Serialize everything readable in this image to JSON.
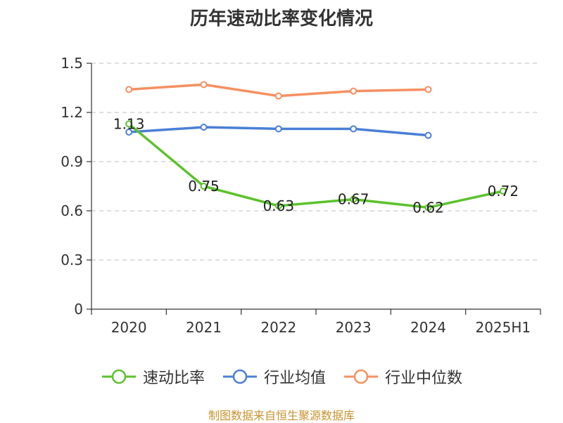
{
  "title": "历年速动比率变化情况",
  "source": "制图数据来自恒生聚源数据库",
  "chart_data": {
    "type": "line",
    "categories": [
      "2020",
      "2021",
      "2022",
      "2023",
      "2024",
      "2025H1"
    ],
    "ylim": [
      0,
      1.5
    ],
    "yticks": [
      "0",
      "0.3",
      "0.6",
      "0.9",
      "1.2",
      "1.5"
    ],
    "grid": true,
    "legend_position": "bottom",
    "series": [
      {
        "name": "速动比率",
        "color": "#5cc22c",
        "values": [
          1.13,
          0.75,
          0.63,
          0.67,
          0.62,
          0.72
        ],
        "labels": [
          "1.13",
          "0.75",
          "0.63",
          "0.67",
          "0.62",
          "0.72"
        ]
      },
      {
        "name": "行业均值",
        "color": "#4a7fd6",
        "values": [
          1.08,
          1.11,
          1.1,
          1.1,
          1.06,
          null
        ]
      },
      {
        "name": "行业中位数",
        "color": "#f59060",
        "values": [
          1.34,
          1.37,
          1.3,
          1.33,
          1.34,
          null
        ]
      }
    ]
  }
}
